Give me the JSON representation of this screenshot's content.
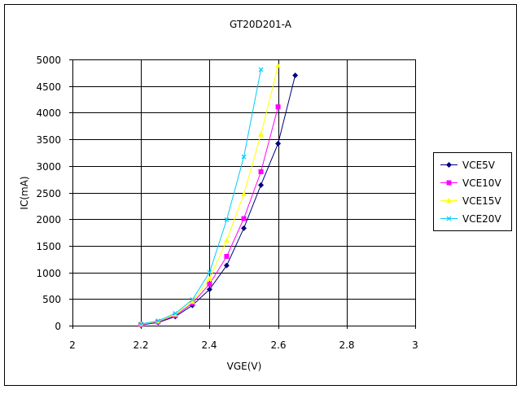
{
  "chart_data": {
    "type": "line",
    "title": "GT20D201-A",
    "xlabel": "VGE(V)",
    "ylabel": "IC(mA)",
    "xlim": [
      2,
      3
    ],
    "ylim": [
      0,
      5000
    ],
    "xticks": [
      2,
      2.2,
      2.4,
      2.6,
      2.8,
      3
    ],
    "yticks": [
      0,
      500,
      1000,
      1500,
      2000,
      2500,
      3000,
      3500,
      4000,
      4500,
      5000
    ],
    "grid": true,
    "legend": "right",
    "series": [
      {
        "name": "VCE5V",
        "color": "#000080",
        "marker": "diamond",
        "x": [
          2.2,
          2.25,
          2.3,
          2.35,
          2.4,
          2.45,
          2.5,
          2.55,
          2.6,
          2.65
        ],
        "y": [
          10,
          60,
          170,
          380,
          680,
          1130,
          1830,
          2640,
          3420,
          4700
        ]
      },
      {
        "name": "VCE10V",
        "color": "#ff00ff",
        "marker": "square",
        "x": [
          2.2,
          2.25,
          2.3,
          2.35,
          2.4,
          2.45,
          2.5,
          2.55,
          2.6
        ],
        "y": [
          20,
          70,
          190,
          420,
          780,
          1300,
          2010,
          2890,
          4110
        ]
      },
      {
        "name": "VCE15V",
        "color": "#ffff00",
        "marker": "triangle",
        "x": [
          2.2,
          2.25,
          2.3,
          2.35,
          2.4,
          2.45,
          2.5,
          2.55,
          2.6
        ],
        "y": [
          25,
          80,
          210,
          450,
          880,
          1600,
          2470,
          3590,
          4880
        ]
      },
      {
        "name": "VCE20V",
        "color": "#00ccff",
        "marker": "x",
        "x": [
          2.2,
          2.25,
          2.3,
          2.35,
          2.4,
          2.45,
          2.5,
          2.55
        ],
        "y": [
          30,
          90,
          230,
          490,
          1000,
          1990,
          3170,
          4810
        ]
      }
    ]
  }
}
